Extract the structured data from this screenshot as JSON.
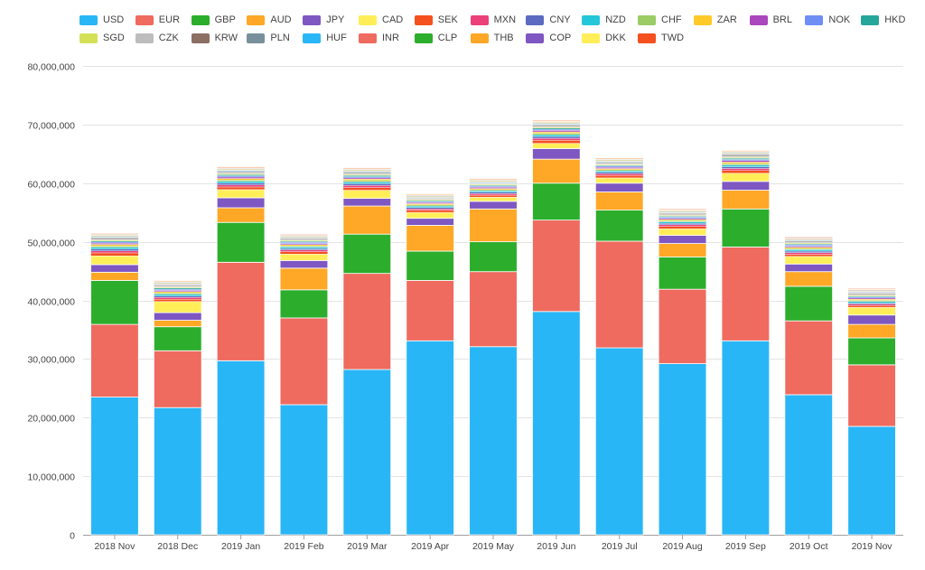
{
  "chart_data": {
    "type": "bar",
    "stacked": true,
    "title": "",
    "xlabel": "",
    "ylabel": "",
    "ylim": [
      0,
      80000000
    ],
    "yticks": [
      0,
      10000000,
      20000000,
      30000000,
      40000000,
      50000000,
      60000000,
      70000000,
      80000000
    ],
    "ytick_labels": [
      "0",
      "10,000,000",
      "20,000,000",
      "30,000,000",
      "40,000,000",
      "50,000,000",
      "60,000,000",
      "70,000,000",
      "80,000,000"
    ],
    "grid": true,
    "legend_position": "top",
    "categories": [
      "2018 Nov",
      "2018 Dec",
      "2019 Jan",
      "2019 Feb",
      "2019 Mar",
      "2019 Apr",
      "2019 May",
      "2019 Jun",
      "2019 Jul",
      "2019 Aug",
      "2019 Sep",
      "2019 Oct",
      "2019 Nov"
    ],
    "series": [
      {
        "name": "USD",
        "color": "#29b6f6",
        "values": [
          23500000,
          21700000,
          29700000,
          22200000,
          28200000,
          33100000,
          32100000,
          38100000,
          31900000,
          29200000,
          33100000,
          23900000,
          18500000
        ]
      },
      {
        "name": "EUR",
        "color": "#ef6a5f",
        "values": [
          12400000,
          9700000,
          16800000,
          14800000,
          16400000,
          10300000,
          12800000,
          15600000,
          18200000,
          12700000,
          16000000,
          12600000,
          10500000
        ]
      },
      {
        "name": "GBP",
        "color": "#2cae2c",
        "values": [
          7500000,
          4100000,
          6800000,
          4800000,
          6700000,
          5000000,
          5100000,
          6300000,
          5300000,
          5500000,
          6500000,
          5900000,
          4600000
        ]
      },
      {
        "name": "AUD",
        "color": "#ffa726",
        "values": [
          1400000,
          1100000,
          2500000,
          3700000,
          4800000,
          4400000,
          5600000,
          4100000,
          3100000,
          2300000,
          3200000,
          2500000,
          2300000
        ]
      },
      {
        "name": "JPY",
        "color": "#7e57c2",
        "values": [
          1300000,
          1300000,
          1700000,
          1300000,
          1300000,
          1200000,
          1300000,
          1800000,
          1500000,
          1400000,
          1500000,
          1300000,
          1600000
        ]
      },
      {
        "name": "CAD",
        "color": "#ffee58",
        "values": [
          1500000,
          1900000,
          1400000,
          1100000,
          1400000,
          1000000,
          700000,
          900000,
          900000,
          1100000,
          1400000,
          1300000,
          1300000
        ]
      },
      {
        "name": "SEK",
        "color": "#f4511e",
        "values": [
          500000,
          400000,
          450000,
          400000,
          450000,
          350000,
          350000,
          500000,
          400000,
          400000,
          450000,
          350000,
          300000
        ]
      },
      {
        "name": "MXN",
        "color": "#ec407a",
        "values": [
          350000,
          300000,
          350000,
          300000,
          350000,
          250000,
          250000,
          350000,
          300000,
          300000,
          350000,
          300000,
          250000
        ]
      },
      {
        "name": "CNY",
        "color": "#5c6bc0",
        "values": [
          300000,
          250000,
          300000,
          250000,
          300000,
          250000,
          250000,
          300000,
          250000,
          250000,
          300000,
          250000,
          200000
        ]
      },
      {
        "name": "NZD",
        "color": "#26c6da",
        "values": [
          300000,
          300000,
          300000,
          250000,
          300000,
          250000,
          250000,
          300000,
          250000,
          250000,
          300000,
          250000,
          250000
        ]
      },
      {
        "name": "CHF",
        "color": "#9ccc65",
        "values": [
          250000,
          250000,
          250000,
          200000,
          250000,
          200000,
          200000,
          250000,
          200000,
          200000,
          250000,
          200000,
          200000
        ]
      },
      {
        "name": "ZAR",
        "color": "#ffca28",
        "values": [
          250000,
          200000,
          250000,
          200000,
          250000,
          200000,
          200000,
          250000,
          200000,
          200000,
          250000,
          200000,
          200000
        ]
      },
      {
        "name": "BRL",
        "color": "#ab47bc",
        "values": [
          200000,
          200000,
          250000,
          200000,
          200000,
          200000,
          200000,
          250000,
          200000,
          200000,
          250000,
          200000,
          200000
        ]
      },
      {
        "name": "NOK",
        "color": "#6f8ef4",
        "values": [
          200000,
          200000,
          200000,
          200000,
          200000,
          150000,
          150000,
          200000,
          200000,
          200000,
          200000,
          200000,
          200000
        ]
      },
      {
        "name": "HKD",
        "color": "#26a69a",
        "values": [
          200000,
          200000,
          200000,
          150000,
          200000,
          150000,
          150000,
          200000,
          150000,
          150000,
          200000,
          150000,
          150000
        ]
      },
      {
        "name": "SGD",
        "color": "#d4e157",
        "values": [
          150000,
          150000,
          150000,
          150000,
          150000,
          150000,
          150000,
          150000,
          150000,
          150000,
          150000,
          150000,
          150000
        ]
      },
      {
        "name": "CZK",
        "color": "#bdbdbd",
        "values": [
          150000,
          150000,
          150000,
          150000,
          150000,
          100000,
          100000,
          150000,
          150000,
          150000,
          150000,
          150000,
          150000
        ]
      },
      {
        "name": "KRW",
        "color": "#8d6e63",
        "values": [
          150000,
          150000,
          150000,
          150000,
          150000,
          100000,
          100000,
          150000,
          150000,
          150000,
          150000,
          150000,
          150000
        ]
      },
      {
        "name": "PLN",
        "color": "#78909c",
        "values": [
          150000,
          100000,
          150000,
          100000,
          150000,
          100000,
          100000,
          150000,
          100000,
          100000,
          150000,
          100000,
          100000
        ]
      },
      {
        "name": "HUF",
        "color": "#29b6f6",
        "values": [
          100000,
          100000,
          100000,
          100000,
          100000,
          100000,
          100000,
          100000,
          100000,
          100000,
          100000,
          100000,
          100000
        ]
      },
      {
        "name": "INR",
        "color": "#ef6a5f",
        "values": [
          100000,
          100000,
          100000,
          100000,
          100000,
          100000,
          100000,
          100000,
          100000,
          100000,
          100000,
          100000,
          100000
        ]
      },
      {
        "name": "CLP",
        "color": "#2cae2c",
        "values": [
          100000,
          100000,
          100000,
          100000,
          100000,
          100000,
          100000,
          100000,
          100000,
          100000,
          100000,
          100000,
          100000
        ]
      },
      {
        "name": "THB",
        "color": "#ffa726",
        "values": [
          100000,
          100000,
          100000,
          100000,
          100000,
          100000,
          100000,
          100000,
          100000,
          100000,
          100000,
          100000,
          100000
        ]
      },
      {
        "name": "COP",
        "color": "#7e57c2",
        "values": [
          100000,
          100000,
          100000,
          100000,
          100000,
          100000,
          100000,
          100000,
          100000,
          100000,
          100000,
          100000,
          100000
        ]
      },
      {
        "name": "DKK",
        "color": "#ffee58",
        "values": [
          100000,
          100000,
          100000,
          100000,
          100000,
          100000,
          100000,
          100000,
          100000,
          100000,
          100000,
          100000,
          100000
        ]
      },
      {
        "name": "TWD",
        "color": "#f4511e",
        "values": [
          100000,
          100000,
          100000,
          100000,
          100000,
          100000,
          100000,
          100000,
          100000,
          100000,
          100000,
          100000,
          100000
        ]
      }
    ]
  }
}
